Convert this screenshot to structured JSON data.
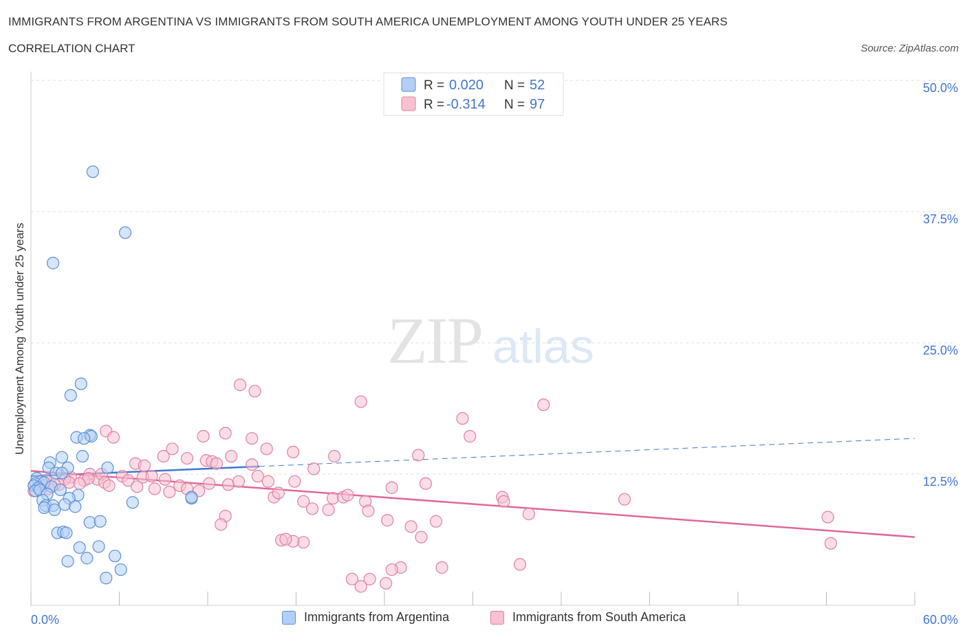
{
  "title": "IMMIGRANTS FROM ARGENTINA VS IMMIGRANTS FROM SOUTH AMERICA UNEMPLOYMENT AMONG YOUTH UNDER 25 YEARS",
  "subtitle": "CORRELATION CHART",
  "source": "Source: ZipAtlas.com",
  "watermark": {
    "zip": "ZIP",
    "atlas": "atlas"
  },
  "legend": {
    "r_label": "R =",
    "n_label": "N =",
    "items": [
      {
        "r": "0.020",
        "n": "52"
      },
      {
        "r": "-0.314",
        "n": "97"
      }
    ]
  },
  "colors": {
    "blue_fill": "#b3cff5",
    "blue_stroke": "#5b8fd6",
    "blue_line": "#3f76d0",
    "pink_fill": "#f7c1d2",
    "pink_stroke": "#e07fa0",
    "pink_line": "#e0679a",
    "value_text": "#3f76d0",
    "grid": "#dddddd"
  },
  "chart_data": {
    "type": "scatter",
    "title": "IMMIGRANTS FROM ARGENTINA VS IMMIGRANTS FROM SOUTH AMERICA UNEMPLOYMENT AMONG YOUTH UNDER 25 YEARS",
    "xlabel": "",
    "ylabel": "Unemployment Among Youth under 25 years",
    "xlim": [
      0,
      60
    ],
    "ylim": [
      0,
      50
    ],
    "x_tick_labels": [
      "0.0%",
      "60.0%"
    ],
    "y_ticks": [
      12.5,
      25.0,
      37.5,
      50.0
    ],
    "y_tick_labels": [
      "12.5%",
      "25.0%",
      "37.5%",
      "50.0%"
    ],
    "grid": true,
    "series": [
      {
        "name": "Immigrants from Argentina",
        "r": 0.02,
        "n": 52,
        "trend": {
          "x0": 0,
          "y0": 12.3,
          "x1": 60,
          "y1": 15.9,
          "solid_until": 15.5
        },
        "points": [
          [
            4.2,
            41.3
          ],
          [
            6.4,
            35.5
          ],
          [
            1.5,
            32.6
          ],
          [
            3.4,
            21.1
          ],
          [
            2.7,
            20.0
          ],
          [
            3.1,
            16.0
          ],
          [
            4.0,
            16.2
          ],
          [
            4.1,
            16.1
          ],
          [
            2.1,
            14.1
          ],
          [
            3.5,
            14.2
          ],
          [
            1.3,
            13.6
          ],
          [
            1.2,
            13.1
          ],
          [
            2.5,
            13.1
          ],
          [
            5.2,
            13.1
          ],
          [
            1.7,
            12.6
          ],
          [
            2.1,
            12.6
          ],
          [
            0.4,
            12.1
          ],
          [
            0.7,
            11.8
          ],
          [
            0.3,
            11.6
          ],
          [
            0.9,
            11.7
          ],
          [
            0.2,
            11.4
          ],
          [
            0.5,
            11.2
          ],
          [
            1.4,
            11.3
          ],
          [
            2.0,
            11.0
          ],
          [
            0.3,
            10.9
          ],
          [
            0.6,
            11.0
          ],
          [
            1.1,
            10.6
          ],
          [
            0.8,
            10.0
          ],
          [
            3.2,
            10.5
          ],
          [
            2.6,
            10.2
          ],
          [
            1.0,
            9.5
          ],
          [
            1.5,
            9.5
          ],
          [
            0.9,
            9.3
          ],
          [
            1.6,
            9.1
          ],
          [
            2.3,
            9.6
          ],
          [
            3.0,
            9.4
          ],
          [
            6.9,
            9.8
          ],
          [
            10.9,
            10.2
          ],
          [
            10.9,
            10.3
          ],
          [
            4.0,
            7.9
          ],
          [
            4.7,
            8.0
          ],
          [
            1.8,
            6.9
          ],
          [
            2.2,
            7.0
          ],
          [
            2.4,
            6.9
          ],
          [
            3.3,
            5.5
          ],
          [
            4.6,
            5.6
          ],
          [
            5.7,
            4.7
          ],
          [
            3.8,
            4.5
          ],
          [
            2.5,
            4.2
          ],
          [
            6.1,
            3.4
          ],
          [
            5.1,
            2.6
          ],
          [
            3.6,
            15.9
          ]
        ]
      },
      {
        "name": "Immigrants from South America",
        "r": -0.314,
        "n": 97,
        "trend": {
          "x0": 0,
          "y0": 12.8,
          "x1": 60,
          "y1": 6.5
        },
        "points": [
          [
            14.2,
            21.0
          ],
          [
            15.2,
            20.4
          ],
          [
            22.4,
            19.4
          ],
          [
            34.8,
            19.1
          ],
          [
            29.3,
            17.8
          ],
          [
            5.1,
            16.6
          ],
          [
            5.6,
            16.0
          ],
          [
            11.7,
            16.1
          ],
          [
            13.2,
            16.4
          ],
          [
            15.0,
            15.9
          ],
          [
            29.8,
            16.1
          ],
          [
            9.6,
            14.9
          ],
          [
            16.0,
            14.9
          ],
          [
            17.8,
            14.6
          ],
          [
            9.0,
            14.2
          ],
          [
            10.6,
            14.0
          ],
          [
            11.9,
            13.8
          ],
          [
            12.3,
            13.7
          ],
          [
            13.6,
            14.2
          ],
          [
            20.6,
            14.2
          ],
          [
            26.3,
            14.3
          ],
          [
            7.1,
            13.5
          ],
          [
            7.7,
            13.3
          ],
          [
            12.6,
            13.5
          ],
          [
            15.0,
            13.4
          ],
          [
            19.2,
            13.0
          ],
          [
            6.2,
            12.3
          ],
          [
            7.6,
            12.2
          ],
          [
            8.2,
            12.3
          ],
          [
            9.1,
            12.0
          ],
          [
            10.1,
            11.4
          ],
          [
            10.6,
            11.1
          ],
          [
            4.0,
            12.5
          ],
          [
            3.6,
            11.9
          ],
          [
            4.5,
            12.0
          ],
          [
            4.8,
            12.5
          ],
          [
            3.9,
            12.1
          ],
          [
            2.7,
            12.2
          ],
          [
            2.3,
            12.0
          ],
          [
            1.9,
            11.5
          ],
          [
            1.0,
            11.9
          ],
          [
            0.9,
            11.4
          ],
          [
            0.5,
            11.2
          ],
          [
            0.2,
            10.9
          ],
          [
            1.2,
            11.1
          ],
          [
            1.6,
            11.5
          ],
          [
            2.6,
            11.7
          ],
          [
            3.3,
            11.6
          ],
          [
            5.0,
            11.7
          ],
          [
            5.3,
            11.4
          ],
          [
            6.6,
            11.9
          ],
          [
            7.2,
            11.3
          ],
          [
            8.4,
            11.1
          ],
          [
            9.4,
            10.8
          ],
          [
            11.4,
            10.9
          ],
          [
            12.1,
            11.6
          ],
          [
            13.4,
            11.5
          ],
          [
            14.1,
            11.8
          ],
          [
            15.4,
            12.3
          ],
          [
            16.1,
            11.8
          ],
          [
            16.5,
            10.3
          ],
          [
            16.8,
            10.7
          ],
          [
            17.9,
            11.8
          ],
          [
            18.5,
            9.9
          ],
          [
            20.5,
            10.2
          ],
          [
            21.2,
            10.3
          ],
          [
            21.5,
            10.5
          ],
          [
            22.7,
            9.9
          ],
          [
            20.2,
            9.1
          ],
          [
            22.9,
            9.0
          ],
          [
            19.1,
            9.2
          ],
          [
            24.5,
            11.2
          ],
          [
            26.8,
            11.6
          ],
          [
            24.2,
            8.1
          ],
          [
            25.8,
            7.5
          ],
          [
            27.5,
            8.0
          ],
          [
            26.5,
            6.5
          ],
          [
            18.5,
            6.0
          ],
          [
            17.8,
            6.1
          ],
          [
            17.0,
            6.2
          ],
          [
            17.3,
            6.3
          ],
          [
            13.2,
            8.5
          ],
          [
            12.9,
            7.7
          ],
          [
            32.0,
            10.3
          ],
          [
            32.1,
            9.9
          ],
          [
            33.8,
            8.7
          ],
          [
            40.3,
            10.1
          ],
          [
            33.2,
            3.9
          ],
          [
            27.9,
            3.6
          ],
          [
            25.1,
            3.6
          ],
          [
            24.5,
            3.4
          ],
          [
            24.1,
            2.1
          ],
          [
            23.0,
            2.5
          ],
          [
            22.4,
            1.8
          ],
          [
            21.8,
            2.5
          ],
          [
            54.1,
            8.4
          ],
          [
            54.3,
            5.9
          ]
        ]
      }
    ]
  }
}
